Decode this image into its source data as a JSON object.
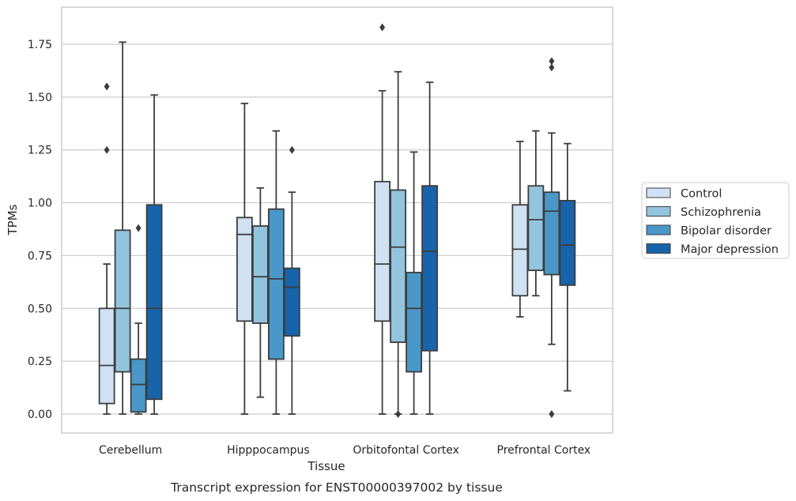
{
  "chart_data": {
    "type": "boxplot",
    "caption": "Transcript expression for ENST00000397002 by tissue",
    "xlabel": "Tissue",
    "ylabel": "TPMs",
    "ylim": [
      -0.09,
      1.95
    ],
    "yticks": [
      "0.00",
      "0.25",
      "0.50",
      "0.75",
      "1.00",
      "1.25",
      "1.50",
      "1.75"
    ],
    "grid": "horizontal",
    "legend_position": "right",
    "categories": [
      "Cerebellum",
      "Hipppocampus",
      "Orbitofontal Cortex",
      "Prefrontal Cortex"
    ],
    "series": [
      {
        "name": "Control",
        "color": "#cfe1f2",
        "boxes": [
          {
            "whislo": 0.0,
            "q1": 0.05,
            "med": 0.23,
            "q3": 0.5,
            "whishi": 0.71,
            "fliers": [
              1.25,
              1.55
            ]
          },
          {
            "whislo": 0.0,
            "q1": 0.44,
            "med": 0.85,
            "q3": 0.93,
            "whishi": 1.47,
            "fliers": []
          },
          {
            "whislo": 0.0,
            "q1": 0.44,
            "med": 0.71,
            "q3": 1.1,
            "whishi": 1.53,
            "fliers": []
          },
          {
            "whislo": 0.46,
            "q1": 0.56,
            "med": 0.78,
            "q3": 0.99,
            "whishi": 1.29,
            "fliers": []
          }
        ]
      },
      {
        "name": "Schizophrenia",
        "color": "#93c4de",
        "boxes": [
          {
            "whislo": 0.0,
            "q1": 0.2,
            "med": 0.5,
            "q3": 0.87,
            "whishi": 1.76,
            "fliers": []
          },
          {
            "whislo": 0.08,
            "q1": 0.43,
            "med": 0.65,
            "q3": 0.89,
            "whishi": 1.07,
            "fliers": []
          },
          {
            "whislo": 0.0,
            "q1": 0.34,
            "med": 0.79,
            "q3": 1.06,
            "whishi": 1.62,
            "fliers": []
          },
          {
            "whislo": 0.56,
            "q1": 0.68,
            "med": 0.92,
            "q3": 1.08,
            "whishi": 1.34,
            "fliers": []
          }
        ]
      },
      {
        "name": "Bipolar disorder",
        "color": "#4a98c9",
        "boxes": [
          {
            "whislo": 0.0,
            "q1": 0.01,
            "med": 0.14,
            "q3": 0.26,
            "whishi": 0.43,
            "fliers": [
              0.88
            ]
          },
          {
            "whislo": 0.0,
            "q1": 0.26,
            "med": 0.64,
            "q3": 0.97,
            "whishi": 1.34,
            "fliers": []
          },
          {
            "whislo": 0.0,
            "q1": 0.2,
            "med": 0.5,
            "q3": 0.67,
            "whishi": 1.24,
            "fliers": []
          },
          {
            "whislo": 0.33,
            "q1": 0.66,
            "med": 0.96,
            "q3": 1.05,
            "whishi": 1.33,
            "fliers": [
              0.0,
              1.64,
              1.67
            ]
          }
        ]
      },
      {
        "name": "Major depression",
        "color": "#1764ab",
        "boxes": [
          {
            "whislo": 0.0,
            "q1": 0.07,
            "med": 0.5,
            "q3": 0.99,
            "whishi": 1.51,
            "fliers": []
          },
          {
            "whislo": 0.0,
            "q1": 0.37,
            "med": 0.6,
            "q3": 0.69,
            "whishi": 1.05,
            "fliers": [
              1.25
            ]
          },
          {
            "whislo": 0.0,
            "q1": 0.3,
            "med": 0.77,
            "q3": 1.08,
            "whishi": 1.57,
            "fliers": []
          },
          {
            "whislo": 0.11,
            "q1": 0.61,
            "med": 0.8,
            "q3": 1.01,
            "whishi": 1.28,
            "fliers": []
          }
        ]
      }
    ],
    "extra_fliers": [
      {
        "category": 2,
        "series": 0,
        "fliers": [
          1.83
        ]
      },
      {
        "category": 2,
        "series": 1,
        "fliers": [
          0.0
        ]
      }
    ]
  }
}
